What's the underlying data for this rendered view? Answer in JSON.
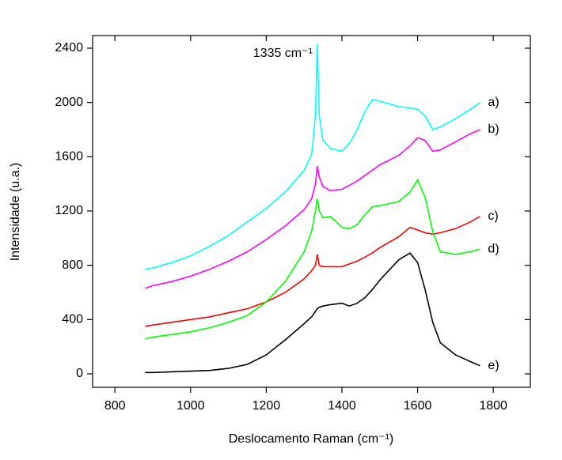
{
  "chart_data": {
    "type": "line",
    "x_label": "Deslocamento Raman (cm⁻¹)",
    "y_label": "Intensidade (u.a.)",
    "annotation": "1335 cm⁻¹",
    "x": [
      880,
      900,
      950,
      1000,
      1050,
      1100,
      1150,
      1200,
      1250,
      1300,
      1320,
      1330,
      1335,
      1340,
      1350,
      1370,
      1400,
      1420,
      1440,
      1460,
      1480,
      1500,
      1550,
      1580,
      1600,
      1620,
      1640,
      1660,
      1700,
      1740,
      1765
    ],
    "series": [
      {
        "name": "a)",
        "color": "#00ffff",
        "values": [
          770,
          780,
          820,
          870,
          940,
          1020,
          1120,
          1220,
          1340,
          1500,
          1620,
          1900,
          2430,
          1900,
          1720,
          1660,
          1640,
          1700,
          1800,
          1930,
          2020,
          2010,
          1970,
          1960,
          1950,
          1900,
          1800,
          1820,
          1880,
          1950,
          2000
        ]
      },
      {
        "name": "b)",
        "color": "#ff00ff",
        "values": [
          630,
          650,
          680,
          720,
          770,
          830,
          900,
          990,
          1090,
          1210,
          1290,
          1400,
          1530,
          1450,
          1380,
          1350,
          1360,
          1390,
          1420,
          1460,
          1500,
          1540,
          1610,
          1680,
          1740,
          1720,
          1640,
          1650,
          1710,
          1770,
          1800
        ]
      },
      {
        "name": "c)",
        "color": "#ff0000",
        "values": [
          350,
          360,
          380,
          400,
          420,
          450,
          480,
          530,
          600,
          700,
          760,
          800,
          880,
          800,
          790,
          790,
          790,
          810,
          830,
          860,
          890,
          930,
          1010,
          1080,
          1060,
          1040,
          1030,
          1040,
          1070,
          1120,
          1160
        ]
      },
      {
        "name": "d)",
        "color": "#00ff00",
        "values": [
          260,
          270,
          290,
          310,
          340,
          380,
          430,
          530,
          680,
          900,
          1050,
          1200,
          1290,
          1200,
          1150,
          1160,
          1080,
          1070,
          1100,
          1170,
          1230,
          1240,
          1270,
          1340,
          1430,
          1300,
          1050,
          900,
          880,
          900,
          920
        ]
      },
      {
        "name": "e)",
        "color": "#000000",
        "values": [
          10,
          10,
          15,
          20,
          25,
          40,
          70,
          140,
          250,
          370,
          420,
          460,
          480,
          490,
          500,
          510,
          520,
          500,
          520,
          560,
          620,
          690,
          840,
          890,
          820,
          620,
          380,
          230,
          140,
          90,
          60
        ]
      }
    ],
    "xlim": [
      741,
      1898
    ],
    "ylim": [
      -99,
      2493
    ],
    "xticks": [
      800,
      1000,
      1200,
      1400,
      1600,
      1800
    ],
    "yticks": [
      0,
      400,
      800,
      1200,
      1600,
      2000,
      2400
    ],
    "grid": false
  }
}
